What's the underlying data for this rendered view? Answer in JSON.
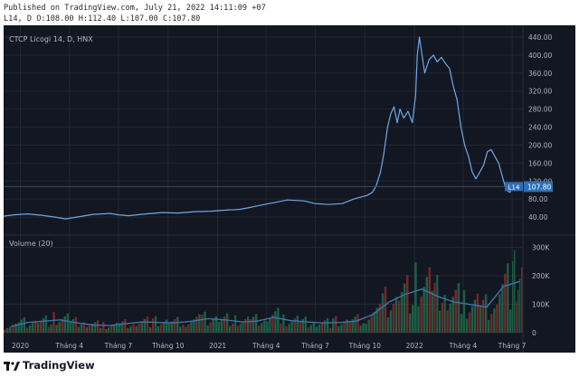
{
  "header": {
    "published_line": "Published on TradingView.com, July 21, 2022 14:11:09 +07",
    "ohlc_line": "L14, D O:108.00 H:112.40 L:107.00 C:107.80"
  },
  "footer": {
    "brand": "TradingView"
  },
  "colors": {
    "background": "#131722",
    "grid": "#232733",
    "price_line": "#6ea8e6",
    "up_volume": "#1e6b4b",
    "down_volume": "#8b2a2a",
    "volume_ma": "#3b76a8",
    "text": "#b2b5be",
    "last_price_label": "#2f6eb4"
  },
  "chart_data": [
    {
      "type": "line",
      "title": "CTCP Licogi 14, D, HNX",
      "symbol": "L14",
      "last_price_label": "107.80",
      "x_tick_labels": [
        "2020",
        "Tháng 4",
        "Tháng 7",
        "Tháng 10",
        "2021",
        "Tháng 4",
        "Tháng 7",
        "Tháng 10",
        "2022",
        "Tháng 4",
        "Tháng 7"
      ],
      "y_tick_labels": [
        "40.00",
        "80.00",
        "120.00",
        "160.00",
        "200.00",
        "240.00",
        "280.00",
        "320.00",
        "360.00",
        "400.00",
        "440.00"
      ],
      "ylim": [
        0,
        450
      ],
      "y_scale": "linear",
      "grid": true,
      "series": [
        {
          "x": [
            "2019-12-01",
            "2019-12-20",
            "2020-01-15",
            "2020-02-10",
            "2020-03-05",
            "2020-03-25",
            "2020-04-20",
            "2020-05-15",
            "2020-06-15",
            "2020-07-01",
            "2020-07-20",
            "2020-08-20",
            "2020-09-20",
            "2020-10-20",
            "2020-11-20",
            "2020-12-20",
            "2021-01-10",
            "2021-02-10",
            "2021-03-05",
            "2021-03-25",
            "2021-04-15",
            "2021-05-10",
            "2021-06-10",
            "2021-07-01",
            "2021-07-25",
            "2021-08-20",
            "2021-09-10",
            "2021-09-25",
            "2021-10-05",
            "2021-10-15",
            "2021-10-22",
            "2021-10-30",
            "2021-11-05",
            "2021-11-12",
            "2021-11-18",
            "2021-11-24",
            "2021-11-30",
            "2021-12-05",
            "2021-12-12",
            "2021-12-20",
            "2021-12-28",
            "2022-01-03",
            "2022-01-06",
            "2022-01-10",
            "2022-01-15",
            "2022-01-20",
            "2022-01-28",
            "2022-02-05",
            "2022-02-12",
            "2022-02-20",
            "2022-02-28",
            "2022-03-07",
            "2022-03-14",
            "2022-03-21",
            "2022-03-28",
            "2022-04-04",
            "2022-04-11",
            "2022-04-18",
            "2022-04-25",
            "2022-05-02",
            "2022-05-09",
            "2022-05-16",
            "2022-05-23",
            "2022-05-30",
            "2022-06-06",
            "2022-06-13",
            "2022-06-20",
            "2022-06-27",
            "2022-07-04",
            "2022-07-11",
            "2022-07-20"
          ],
          "values": [
            42,
            45,
            47,
            44,
            40,
            36,
            41,
            46,
            48,
            45,
            43,
            47,
            50,
            49,
            52,
            53,
            55,
            57,
            62,
            67,
            72,
            78,
            76,
            70,
            68,
            70,
            80,
            85,
            88,
            95,
            110,
            140,
            180,
            240,
            270,
            285,
            250,
            280,
            260,
            275,
            250,
            310,
            400,
            440,
            400,
            360,
            390,
            400,
            385,
            395,
            380,
            370,
            330,
            300,
            240,
            200,
            175,
            140,
            125,
            140,
            155,
            185,
            190,
            175,
            160,
            130,
            100,
            95,
            110,
            108,
            107.8
          ]
        }
      ]
    },
    {
      "type": "bar",
      "title": "Volume (20)",
      "y_tick_labels": [
        "0",
        "100K",
        "200K",
        "300K"
      ],
      "ylim": [
        0,
        330000
      ],
      "grid": true,
      "series": [
        {
          "x": [
            "2019-12",
            "2020-01",
            "2020-02",
            "2020-03",
            "2020-04",
            "2020-05",
            "2020-06",
            "2020-07",
            "2020-08",
            "2020-09",
            "2020-10",
            "2020-11",
            "2020-12",
            "2021-01",
            "2021-02",
            "2021-03",
            "2021-04",
            "2021-05",
            "2021-06",
            "2021-07",
            "2021-08",
            "2021-09",
            "2021-10",
            "2021-11",
            "2021-12",
            "2022-01",
            "2022-02",
            "2022-03",
            "2022-04",
            "2022-05",
            "2022-06",
            "2022-07"
          ],
          "values": [
            25000,
            40000,
            45000,
            50000,
            38000,
            30000,
            28000,
            35000,
            42000,
            40000,
            38000,
            45000,
            55000,
            50000,
            42000,
            45000,
            60000,
            48000,
            42000,
            38000,
            40000,
            45000,
            70000,
            120000,
            150000,
            170000,
            140000,
            120000,
            110000,
            100000,
            180000,
            200000
          ]
        }
      ]
    }
  ]
}
